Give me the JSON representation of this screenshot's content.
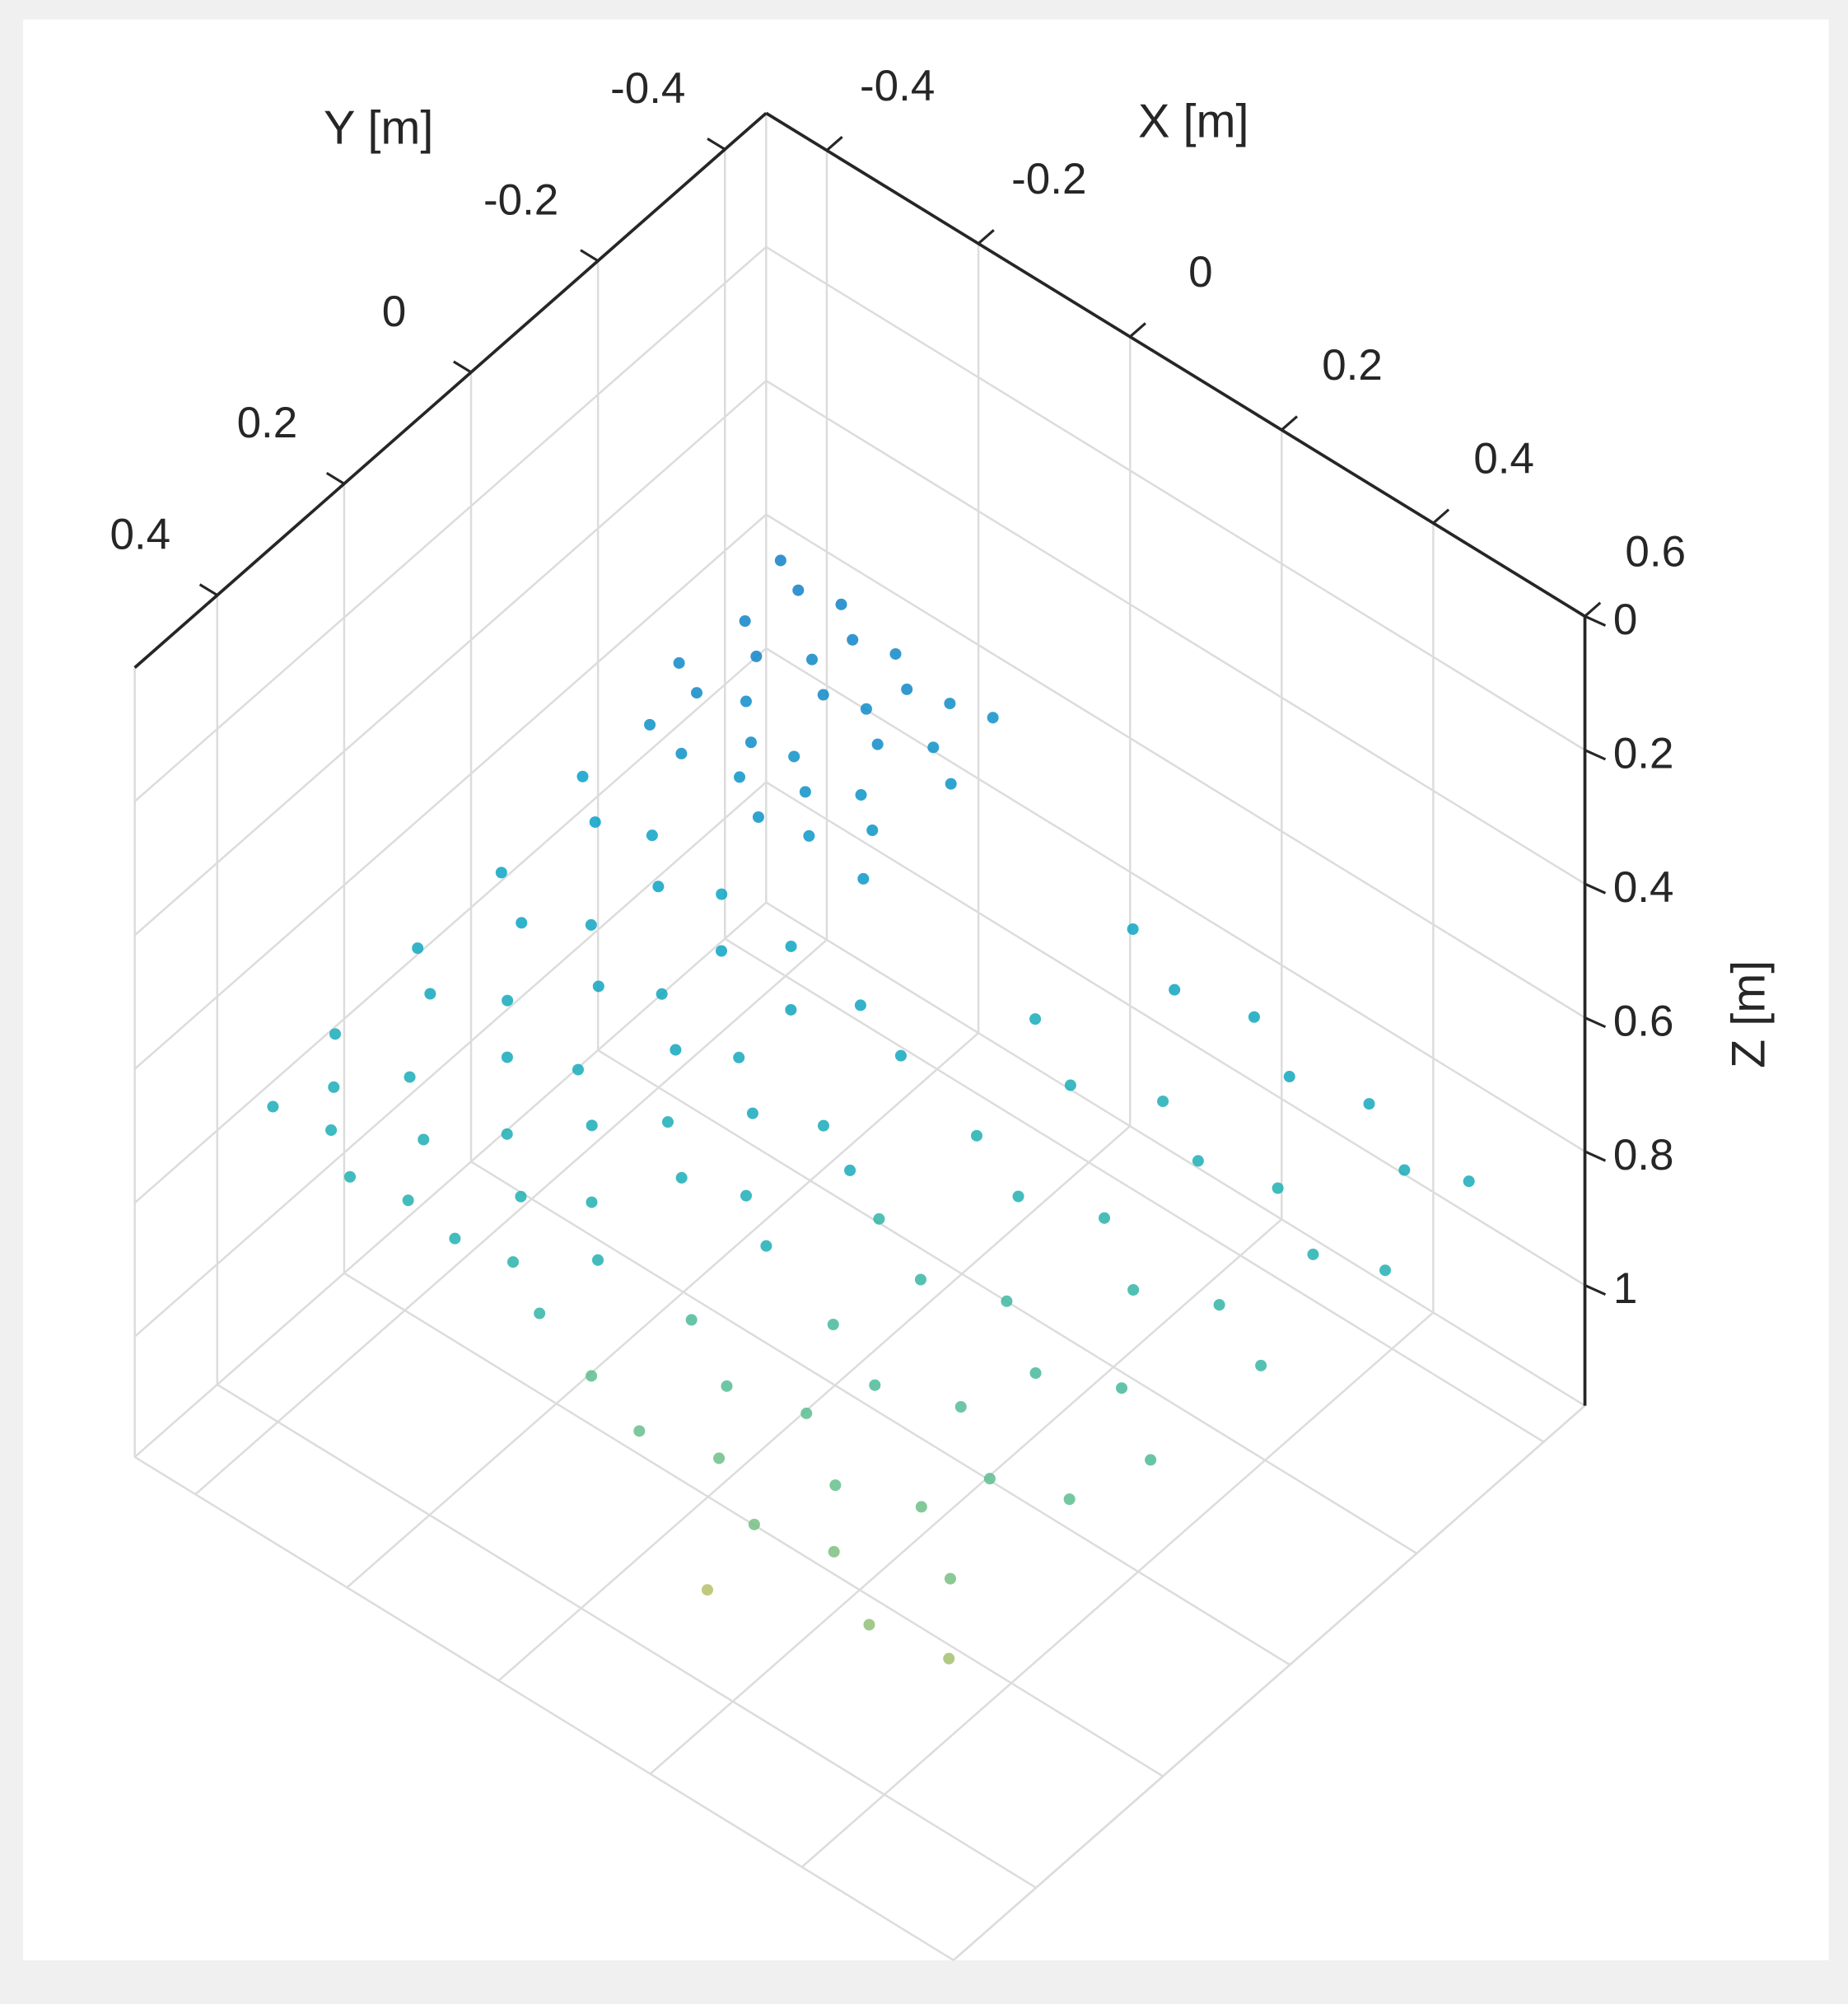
{
  "chart_data": {
    "type": "scatter3d",
    "xlabel": "X [m]",
    "ylabel": "Y [m]",
    "zlabel": "Z [m]",
    "xlim": [
      -0.48,
      0.6
    ],
    "ylim": [
      -0.465,
      0.53
    ],
    "zlim": [
      0,
      1.18
    ],
    "zdir": "reverse",
    "xticks": [
      -0.4,
      -0.2,
      0,
      0.2,
      0.4,
      0.6
    ],
    "yticks": [
      -0.4,
      -0.2,
      0,
      0.2,
      0.4
    ],
    "zticks": [
      0,
      0.2,
      0.4,
      0.6,
      0.8,
      1
    ],
    "grid": true,
    "clim": [
      0.6,
      1.0
    ],
    "colormap": [
      "#1478c8",
      "#08a0c8",
      "#22b2b0",
      "#6cc088",
      "#c8c060"
    ],
    "x": [
      -0.44,
      -0.4,
      -0.36,
      -0.32,
      -0.28,
      -0.24,
      -0.2,
      -0.16,
      -0.42,
      -0.38,
      -0.34,
      -0.3,
      -0.26,
      -0.22,
      -0.18,
      -0.14,
      -0.44,
      -0.4,
      -0.36,
      -0.32,
      -0.28,
      -0.24,
      -0.2,
      -0.16,
      -0.42,
      -0.37,
      -0.31,
      -0.26,
      -0.21,
      -0.13,
      -0.45,
      -0.4,
      -0.35,
      -0.3,
      -0.25,
      -0.2,
      -0.15,
      -0.1,
      -0.05,
      0.02,
      -0.44,
      -0.38,
      -0.33,
      -0.27,
      -0.22,
      -0.16,
      -0.11,
      -0.05,
      0.01,
      0.07,
      -0.45,
      -0.4,
      -0.34,
      -0.29,
      -0.23,
      -0.17,
      -0.12,
      -0.06,
      0.0,
      0.06,
      -0.45,
      -0.41,
      -0.36,
      -0.3,
      -0.24,
      -0.18,
      -0.12,
      -0.07,
      -0.44,
      -0.38,
      -0.33,
      -0.27,
      -0.2,
      -0.14,
      -0.08,
      0.1,
      0.18,
      0.26,
      0.34,
      0.42,
      0.5,
      0.56,
      0.08,
      0.16,
      0.24,
      0.32,
      0.4,
      0.48,
      0.55,
      0.12,
      0.2,
      0.28,
      0.36,
      0.44,
      0.52,
      0.1,
      0.18,
      0.26,
      0.34,
      0.42,
      0.5,
      0.14,
      0.22,
      0.3,
      0.38,
      0.46,
      0.02,
      0.1,
      0.18,
      0.26,
      0.34,
      0.42,
      -0.02,
      0.06,
      0.14,
      0.22,
      0.3,
      0.38,
      0.46,
      0.2
    ],
    "y": [
      -0.44,
      -0.42,
      -0.44,
      -0.41,
      -0.43,
      -0.4,
      -0.42,
      -0.44,
      -0.36,
      -0.33,
      -0.37,
      -0.34,
      -0.36,
      -0.33,
      -0.37,
      -0.35,
      -0.28,
      -0.26,
      -0.29,
      -0.25,
      -0.27,
      -0.24,
      -0.28,
      -0.25,
      -0.21,
      -0.2,
      -0.22,
      -0.19,
      -0.21,
      -0.2,
      -0.14,
      -0.1,
      -0.13,
      -0.08,
      -0.12,
      -0.06,
      -0.11,
      -0.05,
      -0.1,
      -0.08,
      0.0,
      0.04,
      -0.01,
      0.05,
      0.01,
      0.06,
      0.02,
      0.07,
      0.03,
      0.06,
      0.12,
      0.16,
      0.11,
      0.17,
      0.13,
      0.18,
      0.12,
      0.17,
      0.14,
      0.18,
      0.25,
      0.3,
      0.24,
      0.29,
      0.23,
      0.28,
      0.24,
      0.29,
      0.36,
      0.34,
      0.37,
      0.35,
      0.36,
      0.34,
      0.37,
      -0.35,
      -0.32,
      -0.35,
      -0.31,
      -0.34,
      -0.3,
      -0.33,
      -0.22,
      -0.18,
      -0.23,
      -0.19,
      -0.22,
      -0.18,
      -0.21,
      -0.08,
      -0.05,
      -0.09,
      -0.04,
      -0.08,
      -0.05,
      0.05,
      0.08,
      0.04,
      0.09,
      0.05,
      0.1,
      0.17,
      0.2,
      0.16,
      0.21,
      0.18,
      0.25,
      0.29,
      0.26,
      0.31,
      0.27,
      0.32,
      0.36,
      0.38,
      0.35,
      0.39,
      0.36,
      0.4,
      0.37,
      0.44
    ],
    "z": [
      0.62,
      0.62,
      0.63,
      0.63,
      0.64,
      0.64,
      0.65,
      0.66,
      0.63,
      0.63,
      0.64,
      0.64,
      0.65,
      0.65,
      0.66,
      0.67,
      0.64,
      0.64,
      0.65,
      0.65,
      0.66,
      0.66,
      0.67,
      0.67,
      0.66,
      0.66,
      0.67,
      0.67,
      0.68,
      0.68,
      0.7,
      0.7,
      0.71,
      0.71,
      0.72,
      0.72,
      0.72,
      0.73,
      0.73,
      0.74,
      0.72,
      0.72,
      0.73,
      0.73,
      0.74,
      0.74,
      0.75,
      0.75,
      0.76,
      0.76,
      0.74,
      0.74,
      0.75,
      0.75,
      0.76,
      0.76,
      0.77,
      0.77,
      0.78,
      0.78,
      0.76,
      0.77,
      0.77,
      0.78,
      0.78,
      0.79,
      0.79,
      0.8,
      0.77,
      0.78,
      0.79,
      0.8,
      0.8,
      0.81,
      0.82,
      0.72,
      0.73,
      0.74,
      0.74,
      0.75,
      0.76,
      0.76,
      0.76,
      0.77,
      0.78,
      0.78,
      0.79,
      0.8,
      0.8,
      0.79,
      0.8,
      0.81,
      0.82,
      0.82,
      0.83,
      0.82,
      0.83,
      0.84,
      0.85,
      0.85,
      0.86,
      0.85,
      0.86,
      0.87,
      0.88,
      0.88,
      0.86,
      0.87,
      0.88,
      0.89,
      0.9,
      0.91,
      0.88,
      0.89,
      0.9,
      0.91,
      0.92,
      0.94,
      0.96,
      0.98
    ]
  }
}
